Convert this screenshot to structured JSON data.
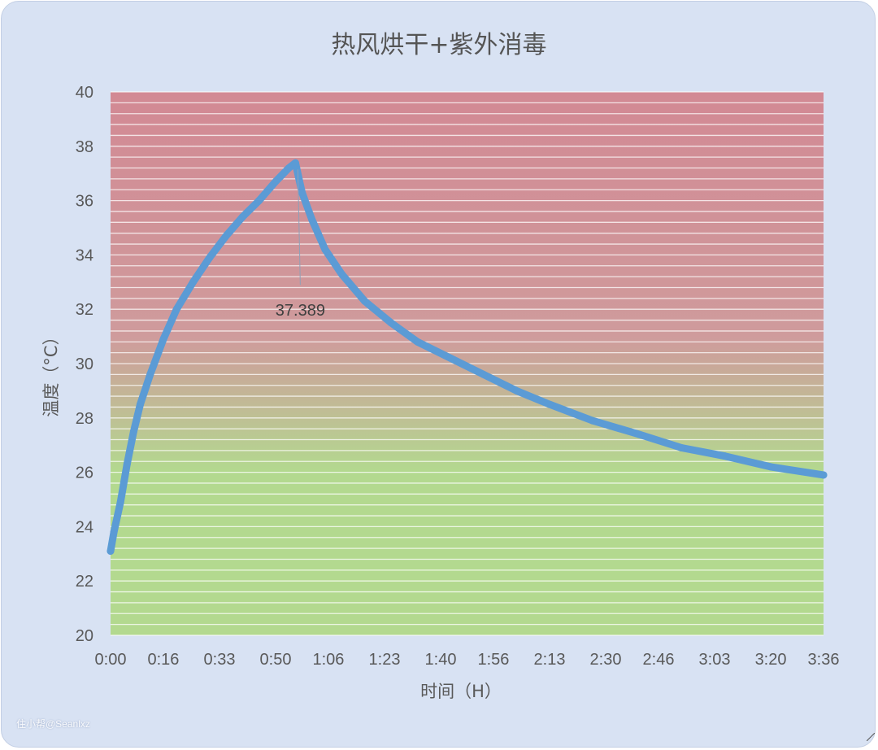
{
  "chart_data": {
    "type": "line",
    "title": "热风烘干+紫外消毒",
    "xlabel": "时间（H）",
    "ylabel": "温度（°C）",
    "ylim": [
      20,
      40
    ],
    "xlim_minutes": [
      0,
      216
    ],
    "x_ticks": [
      "0:00",
      "0:16",
      "0:33",
      "0:50",
      "1:06",
      "1:23",
      "1:40",
      "1:56",
      "2:13",
      "2:30",
      "2:46",
      "3:03",
      "3:20",
      "3:36"
    ],
    "y_ticks": [
      "20",
      "22",
      "24",
      "26",
      "28",
      "30",
      "32",
      "34",
      "36",
      "38",
      "40"
    ],
    "grid": true,
    "legend": "none",
    "background_gradient": {
      "top": "#d28994",
      "bottom": "#b3d98f"
    },
    "series": [
      {
        "color": "#5b9bd5",
        "points": [
          {
            "x": "0:00",
            "y": 23.1
          },
          {
            "x": "0:01",
            "y": 23.8
          },
          {
            "x": "0:03",
            "y": 24.9
          },
          {
            "x": "0:05",
            "y": 26.3
          },
          {
            "x": "0:07",
            "y": 27.5
          },
          {
            "x": "0:09",
            "y": 28.5
          },
          {
            "x": "0:12",
            "y": 29.6
          },
          {
            "x": "0:16",
            "y": 30.9
          },
          {
            "x": "0:20",
            "y": 32.0
          },
          {
            "x": "0:25",
            "y": 33.0
          },
          {
            "x": "0:30",
            "y": 33.9
          },
          {
            "x": "0:35",
            "y": 34.7
          },
          {
            "x": "0:40",
            "y": 35.4
          },
          {
            "x": "0:45",
            "y": 36.0
          },
          {
            "x": "0:50",
            "y": 36.7
          },
          {
            "x": "0:54",
            "y": 37.2
          },
          {
            "x": "0:56",
            "y": 37.389
          },
          {
            "x": "0:58",
            "y": 36.3
          },
          {
            "x": "1:01",
            "y": 35.3
          },
          {
            "x": "1:05",
            "y": 34.2
          },
          {
            "x": "1:10",
            "y": 33.3
          },
          {
            "x": "1:17",
            "y": 32.3
          },
          {
            "x": "1:25",
            "y": 31.5
          },
          {
            "x": "1:33",
            "y": 30.8
          },
          {
            "x": "1:43",
            "y": 30.2
          },
          {
            "x": "1:53",
            "y": 29.6
          },
          {
            "x": "2:03",
            "y": 29.0
          },
          {
            "x": "2:13",
            "y": 28.5
          },
          {
            "x": "2:26",
            "y": 27.9
          },
          {
            "x": "2:40",
            "y": 27.4
          },
          {
            "x": "2:53",
            "y": 26.9
          },
          {
            "x": "3:06",
            "y": 26.6
          },
          {
            "x": "3:20",
            "y": 26.2
          },
          {
            "x": "3:36",
            "y": 25.9
          }
        ]
      }
    ],
    "annotations": [
      {
        "text": "37.389",
        "x": "0:56",
        "y": 37.389
      }
    ]
  },
  "watermark": "住小帮@Seanlxz"
}
